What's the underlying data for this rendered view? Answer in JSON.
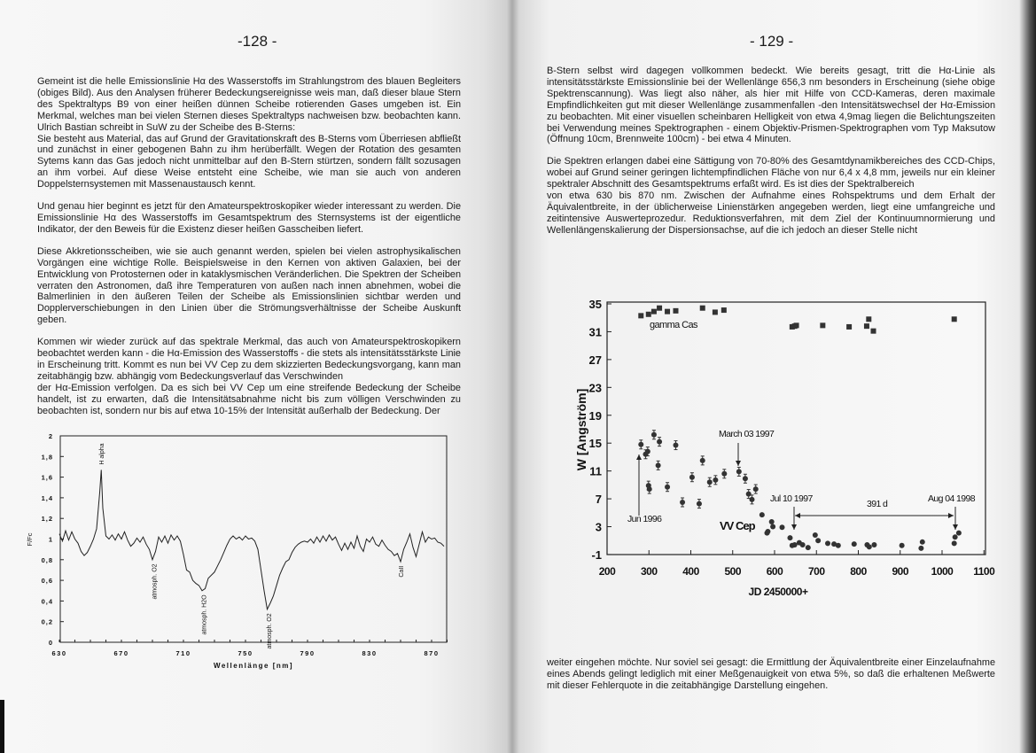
{
  "left_page": {
    "page_number": "-128 -",
    "paragraphs": [
      [
        "Gemeint ist die helle Emissionslinie Hα des Wasserstoffs im Strahlungstrom des blauen Begleiters (obiges Bild). Aus den Analysen früherer Bedeckungsereignisse weis man, daß dieser blaue Stern des Spektraltyps B9 von einer heißen dünnen Scheibe rotierenden Gases umgeben ist. Ein Merkmal, welches man bei vielen Sternen dieses Spektraltyps nachweisen bzw. beobachten kann. Ulrich Bastian schreibt in SuW zu der Scheibe des B-Sterns:",
        "Sie besteht aus Material, das auf Grund der Gravitationskraft des B-Sterns vom Überriesen abfließt und zunächst in einer gebogenen Bahn zu ihm herüberfällt. Wegen der Rotation des gesamten Sytems kann das Gas jedoch nicht unmittelbar auf den B-Stern stürtzen, sondern fällt sozusagen an ihm vorbei. Auf diese Weise entsteht eine Scheibe, wie man sie auch von anderen Doppelsternsystemen mit Massenaustausch kennt."
      ],
      [
        "Und genau hier beginnt es jetzt für den Amateurspektroskopiker wieder interessant zu werden. Die Emissionslinie Hα des Wasserstoffs im Gesamtspektrum des Sternsystems ist der eigentliche Indikator, der den Beweis für die Existenz dieser heißen Gasscheiben liefert."
      ],
      [
        "Diese Akkretionsscheiben, wie sie auch genannt werden, spielen bei vielen astrophysikalischen Vorgängen eine wichtige Rolle. Beispielsweise in den Kernen von aktiven Galaxien, bei der Entwicklung von Protosternen oder in kataklysmischen Veränderlichen. Die Spektren der Scheiben verraten den Astronomen, daß ihre Temperaturen von außen nach innen abnehmen, wobei die Balmerlinien in den äußeren Teilen der Scheibe als Emissionslinien sichtbar werden und Dopplerverschiebungen in den Linien über die Strömungsverhältnisse der Scheibe Auskunft geben."
      ],
      [
        "Kommen wir wieder zurück auf das spektrale Merkmal, das auch von Amateurspektroskopikern beobachtet werden kann - die Hα-Emission des Wasserstoffs - die stets als intensitätsstärkste Linie in Erscheinung tritt. Kommt es nun bei VV Cep zu dem skizzierten Bedeckungsvorgang, kann man zeitabhängig bzw. abhängig vom Bedeckungsverlauf das Verschwinden",
        "der Hα-Emission verfolgen. Da es sich bei VV Cep um eine streifende Bedeckung der Scheibe handelt, ist zu erwarten, daß die Intensitätsabnahme nicht bis zum völligen Verschwinden zu beobachten ist, sondern nur bis auf etwa 10-15% der Intensität außerhalb der Bedeckung. Der"
      ]
    ]
  },
  "right_page": {
    "page_number": "- 129 -",
    "paragraphs": [
      [
        "B-Stern selbst wird dagegen vollkommen bedeckt. Wie bereits gesagt, tritt die Hα-Linie als intensitätsstärkste Emissionslinie bei der Wellenlänge 656,3 nm besonders in Erscheinung (siehe obige Spektrenscannung). Was liegt also näher, als hier mit Hilfe von CCD-Kameras, deren maximale Empfindlichkeiten gut mit dieser Wellenlänge zusammenfallen -den Intensitätswechsel der Hα-Emission zu beobachten. Mit einer visuellen scheinbaren Helligkeit von etwa 4,9mag liegen die Belichtungszeiten bei Verwendung meines Spektrographen - einem Objektiv-Prismen-Spektrographen vom Typ Maksutow (Öffnung 10cm, Brennweite 100cm) - bei etwa 4 Minuten."
      ],
      [
        "Die Spektren erlangen dabei eine Sättigung von 70-80% des Gesamtdynamikbereiches des CCD-Chips, wobei auf Grund seiner geringen lichtempfindlichen Fläche von nur 6,4 x 4,8 mm, jeweils nur ein kleiner spektraler Abschnitt des Gesamtspektrums erfaßt wird. Es ist dies der Spektralbereich",
        "von etwa 630 bis 870 nm. Zwischen der Aufnahme eines Rohspektrums und dem Erhalt der Äquivalentbreite, in der üblicherweise Linienstärken angegeben werden, liegt eine umfangreiche und zeitintensive Auswerteprozedur. Reduktionsverfahren, mit dem Ziel der Kontinuumnormierung und Wellenlängenskalierung der Dispersionsachse, auf die ich jedoch an dieser Stelle nicht"
      ],
      [
        "weiter eingehen möchte. Nur soviel sei gesagt: die Ermittlung der Äquivalentbreite einer Einzelaufnahme eines Abends gelingt lediglich mit einer Meßgenauigkeit von etwa 5%, so daß die erhaltenen Meßwerte mit dieser Fehlerquote in die zeitabhängige Darstellung eingehen."
      ]
    ]
  },
  "chart_data": [
    {
      "type": "line",
      "xlabel": "Wellenlänge [nm]",
      "ylabel": "F/Fc",
      "xlim": [
        630,
        880
      ],
      "ylim": [
        0,
        2
      ],
      "xticks": [
        "630",
        "670",
        "710",
        "750",
        "790",
        "830",
        "870"
      ],
      "yticks": [
        "0",
        "0,2",
        "0,4",
        "0,6",
        "0,8",
        "1",
        "1,2",
        "1,4",
        "1,6",
        "1,8",
        "2"
      ],
      "grid": false,
      "annotations": [
        {
          "text": "H alpha",
          "x": 657
        },
        {
          "text": "atmosph. O2",
          "x": 691
        },
        {
          "text": "atmosph. H2O",
          "x": 723
        },
        {
          "text": "atmosph. O2",
          "x": 765
        },
        {
          "text": "CaII",
          "x": 850
        }
      ],
      "x": [
        630,
        632,
        634,
        636,
        638,
        640,
        642,
        644,
        646,
        648,
        650,
        652,
        654,
        656,
        657,
        658,
        660,
        662,
        664,
        666,
        668,
        670,
        672,
        674,
        676,
        678,
        680,
        682,
        684,
        686,
        688,
        690,
        692,
        694,
        696,
        698,
        700,
        702,
        704,
        706,
        708,
        710,
        712,
        714,
        716,
        718,
        720,
        722,
        724,
        726,
        728,
        730,
        732,
        734,
        736,
        738,
        740,
        742,
        744,
        746,
        748,
        750,
        752,
        754,
        756,
        758,
        760,
        762,
        764,
        766,
        768,
        770,
        772,
        774,
        776,
        778,
        780,
        782,
        784,
        786,
        788,
        790,
        792,
        794,
        796,
        798,
        800,
        802,
        804,
        806,
        808,
        810,
        812,
        814,
        816,
        818,
        820,
        822,
        824,
        826,
        828,
        830,
        832,
        834,
        836,
        838,
        840,
        842,
        844,
        846,
        848,
        850,
        852,
        854,
        856,
        858,
        860,
        862,
        864,
        866,
        868,
        870,
        872,
        874,
        876,
        878
      ],
      "y": [
        1.05,
        0.98,
        1.08,
        0.99,
        1.07,
        1.0,
        0.96,
        0.88,
        0.84,
        0.87,
        0.93,
        1.0,
        1.1,
        1.45,
        1.67,
        1.3,
        1.03,
        1.0,
        1.04,
        0.99,
        1.05,
        1.0,
        1.07,
        0.99,
        0.93,
        0.96,
        1.01,
        0.97,
        1.02,
        0.95,
        0.9,
        0.8,
        0.88,
        1.02,
        0.97,
        1.03,
        0.96,
        1.04,
        0.99,
        1.03,
        0.98,
        0.85,
        0.7,
        0.68,
        0.6,
        0.57,
        0.55,
        0.5,
        0.52,
        0.62,
        0.65,
        0.68,
        0.74,
        0.8,
        0.87,
        0.94,
        1.0,
        1.03,
        1.0,
        1.02,
        0.99,
        1.03,
        1.0,
        1.01,
        0.98,
        0.9,
        0.7,
        0.5,
        0.32,
        0.38,
        0.45,
        0.55,
        0.65,
        0.72,
        0.78,
        0.8,
        0.87,
        0.92,
        0.95,
        0.97,
        0.98,
        0.97,
        1.0,
        0.96,
        1.02,
        0.97,
        1.03,
        0.98,
        1.04,
        0.99,
        1.02,
        0.95,
        0.89,
        0.96,
        0.9,
        0.97,
        0.91,
        1.03,
        0.93,
        0.88,
        1.0,
        0.97,
        1.02,
        0.95,
        0.93,
        0.99,
        0.94,
        0.9,
        0.88,
        0.84,
        0.86,
        0.78,
        0.9,
        0.97,
        1.05,
        0.92,
        0.83,
        0.95,
        1.07,
        0.97,
        1.02,
        1.0,
        1.01,
        0.97,
        0.96,
        0.93
      ]
    },
    {
      "type": "scatter",
      "xlabel": "JD 2450000+",
      "ylabel": "W [Angström]",
      "xlim": [
        200,
        1100
      ],
      "ylim": [
        -1,
        35
      ],
      "xticks": [
        "200",
        "300",
        "400",
        "500",
        "600",
        "700",
        "800",
        "900",
        "1000",
        "1100"
      ],
      "yticks": [
        "35",
        "31",
        "27",
        "23",
        "19",
        "15",
        "11",
        "7",
        "3",
        "-1"
      ],
      "grid": false,
      "series": [
        {
          "name": "gamma Cas",
          "marker": "square",
          "x": [
            281,
            299,
            312,
            325,
            344,
            364,
            428,
            458,
            479,
            642,
            648,
            652,
            715,
            778,
            820,
            825,
            836,
            1029
          ],
          "y": [
            33.3,
            33.5,
            33.9,
            34.4,
            33.9,
            34.0,
            34.4,
            33.8,
            34.1,
            31.7,
            31.8,
            31.9,
            31.9,
            31.7,
            31.8,
            32.8,
            31.1,
            32.8
          ]
        },
        {
          "name": "VV Cep",
          "marker": "circle",
          "x": [
            281,
            292,
            297,
            299,
            301,
            312,
            325,
            322,
            344,
            364,
            380,
            403,
            420,
            428,
            445,
            459,
            480,
            515,
            530,
            538,
            546,
            555,
            570,
            582,
            584,
            593,
            596,
            618,
            637,
            642,
            648,
            659,
            667,
            680,
            697,
            704,
            727,
            742,
            752,
            790,
            821,
            826,
            838,
            904,
            950,
            953,
            1029,
            1031,
            1040
          ],
          "y": [
            14.8,
            13.4,
            13.8,
            8.9,
            8.4,
            16.2,
            15.2,
            11.8,
            8.7,
            14.7,
            6.5,
            10.1,
            6.3,
            12.5,
            9.4,
            9.7,
            10.6,
            10.9,
            9.9,
            7.7,
            6.9,
            8.4,
            4.7,
            2.1,
            2.3,
            3.7,
            3.0,
            2.9,
            1.4,
            0.3,
            0.4,
            0.7,
            0.4,
            0.0,
            1.8,
            1.0,
            0.6,
            0.5,
            0.3,
            0.5,
            0.4,
            0.1,
            0.4,
            0.3,
            -0.1,
            0.8,
            0.6,
            1.5,
            2.1
          ]
        }
      ],
      "annotations": {
        "jun_1996": "Jun 1996",
        "march_1997": "March 03 1997",
        "jul_1997": "Jul 10 1997",
        "aug_1998": "Aug 04 1998",
        "interval": "391 d"
      }
    }
  ]
}
